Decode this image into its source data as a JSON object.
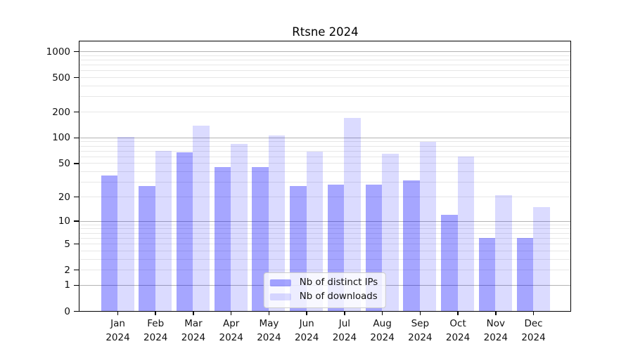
{
  "chart_data": {
    "type": "bar",
    "title": "Rtsne 2024",
    "xlabel": "",
    "ylabel": "",
    "categories": [
      "Jan 2024",
      "Feb 2024",
      "Mar 2024",
      "Apr 2024",
      "May 2024",
      "Jun 2024",
      "Jul 2024",
      "Aug 2024",
      "Sep 2024",
      "Oct 2024",
      "Nov 2024",
      "Dec 2024"
    ],
    "series": [
      {
        "name": "Nb of distinct IPs",
        "color": "#0000FF59",
        "values": [
          36,
          27,
          67,
          45,
          45,
          27,
          28,
          28,
          31,
          12,
          6,
          6
        ]
      },
      {
        "name": "Nb of downloads",
        "color": "#0000FF24",
        "values": [
          102,
          70,
          137,
          85,
          105,
          69,
          170,
          65,
          89,
          60,
          21,
          15
        ]
      }
    ],
    "scale": "log1p",
    "ylim": [
      0,
      1302
    ],
    "yticks": [
      0,
      1,
      2,
      5,
      10,
      20,
      50,
      100,
      200,
      500,
      1000
    ],
    "grid": "horizontal",
    "major_grid_color": "#b3b3b3",
    "minor_grid_color": "#e7e7e7",
    "legend_position": "lower center"
  }
}
